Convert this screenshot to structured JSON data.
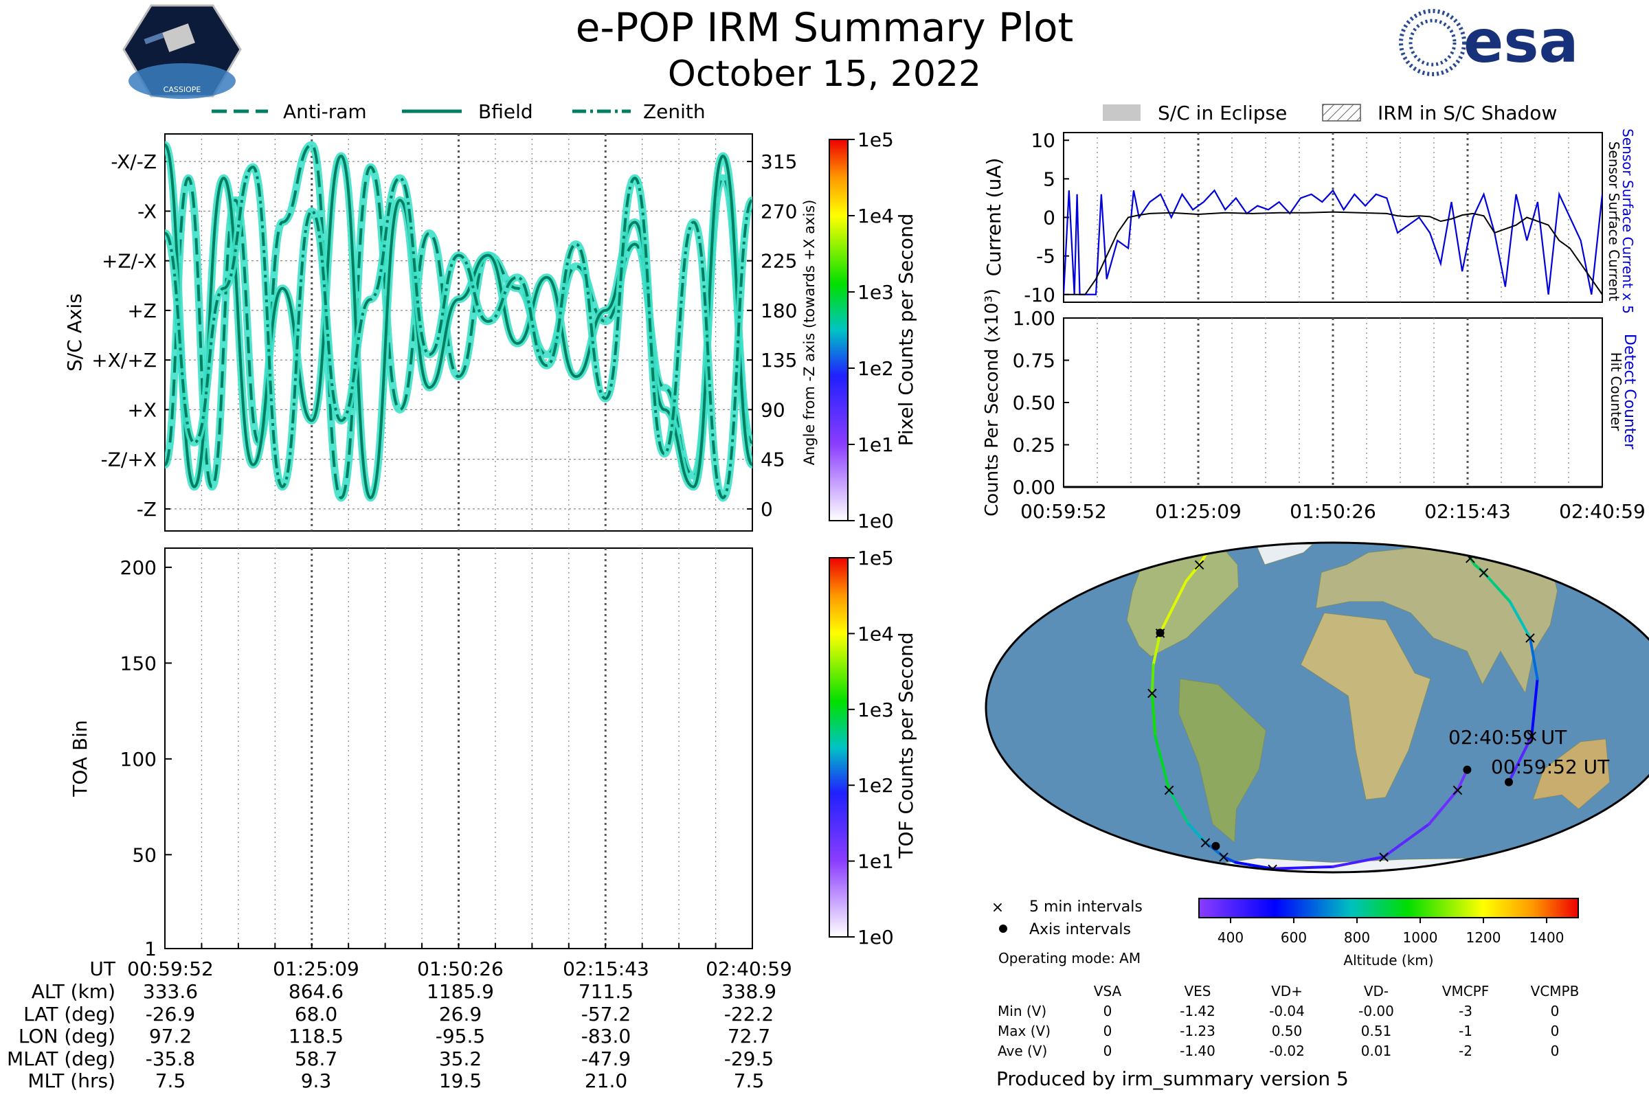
{
  "title": "e-POP IRM Summary Plot",
  "date": "October 15, 2022",
  "logos": {
    "left": "CASSIOPE",
    "right": "esa"
  },
  "orientation_legend": [
    "Anti-ram",
    "Bfield",
    "Zenith"
  ],
  "shadow_legend": [
    "S/C in Eclipse",
    "IRM in S/C Shadow"
  ],
  "colors": {
    "trace": "#008060",
    "halo": "#3de0c8",
    "current_blue": "#0000dd",
    "ocean": "#5b8fb8"
  },
  "chart_data": [
    {
      "type": "line",
      "name": "attitude",
      "ylabel": "S/C Axis",
      "y_ticks": [
        "-X/-Z",
        "-X",
        "+Z/-X",
        "+Z",
        "+X/+Z",
        "+X",
        "-Z/+X",
        "-Z"
      ],
      "y2label": "Angle from -Z axis (towards +X axis)",
      "y2_ticks": [
        315,
        270,
        225,
        180,
        135,
        90,
        45,
        0
      ],
      "ylim": [
        -20,
        340
      ],
      "colorbar": {
        "label": "Pixel Counts per Second",
        "ticks": [
          "1e5",
          "1e4",
          "1e3",
          "1e2",
          "1e1",
          "1e0"
        ]
      },
      "series": [
        {
          "name": "Anti-ram",
          "style": "dashed",
          "x": [
            0,
            4,
            8,
            12,
            16,
            20,
            25,
            30,
            35,
            40,
            45,
            50,
            55,
            60,
            65,
            70,
            75,
            80,
            85,
            90,
            95,
            100
          ],
          "y": [
            40,
            300,
            20,
            280,
            60,
            260,
            330,
            10,
            310,
            90,
            250,
            120,
            230,
            200,
            140,
            220,
            170,
            240,
            110,
            30,
            300,
            60
          ]
        },
        {
          "name": "Bfield",
          "style": "solid",
          "x": [
            0,
            5,
            10,
            15,
            20,
            25,
            30,
            35,
            40,
            45,
            50,
            55,
            60,
            65,
            70,
            75,
            80,
            85,
            90,
            95,
            100
          ],
          "y": [
            330,
            20,
            300,
            40,
            200,
            80,
            320,
            10,
            280,
            110,
            190,
            230,
            150,
            210,
            120,
            180,
            260,
            90,
            20,
            320,
            40
          ]
        },
        {
          "name": "Zenith",
          "style": "dashdot",
          "x": [
            0,
            5,
            10,
            15,
            20,
            25,
            30,
            35,
            40,
            45,
            50,
            55,
            60,
            65,
            70,
            75,
            80,
            85,
            90,
            95,
            100
          ],
          "y": [
            250,
            60,
            200,
            310,
            20,
            270,
            80,
            190,
            300,
            140,
            230,
            170,
            210,
            130,
            240,
            100,
            300,
            50,
            260,
            10,
            280
          ]
        }
      ]
    },
    {
      "type": "heatmap",
      "name": "toa",
      "ylabel": "TOA Bin",
      "y_ticks": [
        200,
        150,
        100,
        50,
        1
      ],
      "ylim": [
        1,
        210
      ],
      "values": [],
      "colorbar": {
        "label": "TOF Counts per Second",
        "ticks": [
          "1e5",
          "1e4",
          "1e3",
          "1e2",
          "1e1",
          "1e0"
        ]
      }
    },
    {
      "type": "line",
      "name": "current",
      "ylabel": "Current (uA)",
      "right_labels": [
        "Sensor Surface Current x 5",
        "Sensor Surface Current"
      ],
      "y_ticks": [
        10,
        5,
        0,
        -5,
        -10
      ],
      "ylim": [
        -11,
        11
      ],
      "x_ticks": [
        "00:59:52",
        "01:25:09",
        "01:50:26",
        "02:15:43",
        "02:40:59"
      ],
      "series": [
        {
          "name": "Sensor Surface Current x 5",
          "color": "#0000dd",
          "x": [
            0,
            1,
            2,
            2.5,
            3,
            4,
            5,
            6,
            7,
            8,
            10,
            12,
            13,
            14,
            16,
            18,
            20,
            22,
            24,
            26,
            28,
            30,
            32,
            34,
            36,
            38,
            40,
            42,
            44,
            46,
            48,
            50,
            52,
            54,
            56,
            58,
            60,
            62,
            64,
            66,
            68,
            70,
            72,
            74,
            76,
            78,
            80,
            82,
            84,
            86,
            88,
            90,
            92,
            94,
            96,
            98,
            100
          ],
          "y": [
            -10,
            3.5,
            -10,
            3.0,
            -10,
            -10,
            -10,
            -10,
            3.0,
            -8,
            -3,
            -4,
            3.5,
            0,
            2,
            3,
            0,
            3,
            1,
            2,
            3.5,
            1,
            2.5,
            0.5,
            1.5,
            1,
            2,
            0.5,
            2.5,
            3,
            2,
            3.5,
            1,
            3,
            1.5,
            3,
            2.5,
            -2,
            -1,
            0,
            -2,
            -6,
            2,
            -7,
            0,
            3,
            -2,
            -9,
            3,
            -3,
            2,
            -10,
            3,
            0,
            -3,
            -10,
            3
          ]
        },
        {
          "name": "Sensor Surface Current",
          "color": "#000000",
          "x": [
            0,
            4,
            6,
            8,
            10,
            12,
            14,
            16,
            20,
            25,
            30,
            35,
            40,
            45,
            50,
            55,
            60,
            62,
            64,
            66,
            68,
            70,
            72,
            74,
            76,
            78,
            80,
            82,
            84,
            86,
            88,
            90,
            92,
            94,
            96,
            98,
            100
          ],
          "y": [
            -10,
            -10,
            -8,
            -5,
            -2,
            0,
            0.3,
            0.5,
            0.6,
            0.4,
            0.6,
            0.5,
            0.6,
            0.6,
            0.7,
            0.6,
            0.5,
            0.2,
            0.1,
            0.2,
            0.1,
            -0.5,
            -0.2,
            0.3,
            0.5,
            0.2,
            -2,
            -1.5,
            -1,
            0,
            -0.5,
            -1,
            -3,
            -4,
            -6,
            -8,
            -10
          ]
        }
      ]
    },
    {
      "type": "line",
      "name": "counts",
      "ylabel": "Counts Per Second (x10³)",
      "right_labels": [
        "Detect Counter",
        "Hit Counter"
      ],
      "y_ticks": [
        "1.00",
        "0.75",
        "0.50",
        "0.25",
        "0.00"
      ],
      "ylim": [
        0,
        1
      ],
      "x_ticks": [
        "00:59:52",
        "01:25:09",
        "01:50:26",
        "02:15:43",
        "02:40:59"
      ],
      "series": [
        {
          "name": "Detect Counter",
          "color": "#0000dd",
          "x": [
            0,
            100
          ],
          "y": [
            0,
            0
          ]
        },
        {
          "name": "Hit Counter",
          "color": "#000000",
          "x": [
            0,
            100
          ],
          "y": [
            0,
            0
          ]
        }
      ]
    }
  ],
  "table": {
    "row_labels": [
      "UT",
      "ALT (km)",
      "LAT (deg)",
      "LON (deg)",
      "MLAT (deg)",
      "MLT (hrs)"
    ],
    "columns": [
      [
        "00:59:52",
        "333.6",
        "-26.9",
        "97.2",
        "-35.8",
        "7.5"
      ],
      [
        "01:25:09",
        "864.6",
        "68.0",
        "118.5",
        "58.7",
        "9.3"
      ],
      [
        "01:50:26",
        "1185.9",
        "26.9",
        "-95.5",
        "35.2",
        "19.5"
      ],
      [
        "02:15:43",
        "711.5",
        "-57.2",
        "-83.0",
        "-47.9",
        "21.0"
      ],
      [
        "02:40:59",
        "338.9",
        "-22.2",
        "72.7",
        "-29.5",
        "7.5"
      ]
    ]
  },
  "map": {
    "start_label": "00:59:52 UT",
    "end_label": "02:40:59 UT",
    "legend": [
      "5 min intervals",
      "Axis intervals"
    ],
    "altitude_label": "Altitude (km)",
    "altitude_ticks": [
      400,
      600,
      800,
      1000,
      1200,
      1400
    ],
    "altitude_range": [
      300,
      1500
    ],
    "track": {
      "lon": [
        97.2,
        104,
        107,
        108,
        106,
        104,
        104,
        108,
        118.5,
        140,
        180,
        -160,
        -110,
        -98,
        -96,
        -95.5,
        -95,
        -94,
        -93,
        -92,
        -90,
        -88,
        -87,
        -86,
        -83,
        -60,
        0,
        40,
        60,
        70,
        72.7
      ],
      "lat": [
        -26.9,
        -10,
        10,
        25,
        40,
        55,
        60,
        65,
        68,
        72,
        78,
        76,
        72,
        60,
        50,
        26.9,
        15,
        5,
        -10,
        -30,
        -45,
        -55,
        -57.2,
        -65,
        -70,
        -78,
        -75,
        -65,
        -45,
        -30,
        -22.2
      ],
      "alt": [
        333.6,
        450,
        600,
        750,
        820,
        860,
        864.6,
        900,
        950,
        1050,
        1100,
        1150,
        1180,
        1185.9,
        1150,
        1185.9,
        1100,
        1000,
        950,
        900,
        800,
        720,
        711.5,
        650,
        600,
        500,
        430,
        400,
        370,
        345,
        338.9
      ]
    }
  },
  "operating_mode": "Operating mode: AM",
  "voltage_table": {
    "headers": [
      "VSA",
      "VES",
      "VD+",
      "VD-",
      "VMCPF",
      "VCMPB"
    ],
    "rows": [
      {
        "label": "Min (V)",
        "values": [
          "0",
          "-1.42",
          "-0.04",
          "-0.00",
          "-3",
          "0"
        ]
      },
      {
        "label": "Max (V)",
        "values": [
          "0",
          "-1.23",
          "0.50",
          "0.51",
          "-1",
          "0"
        ]
      },
      {
        "label": "Ave (V)",
        "values": [
          "0",
          "-1.40",
          "-0.02",
          "0.01",
          "-2",
          "0"
        ]
      }
    ]
  },
  "footer": "Produced by irm_summary version 5"
}
